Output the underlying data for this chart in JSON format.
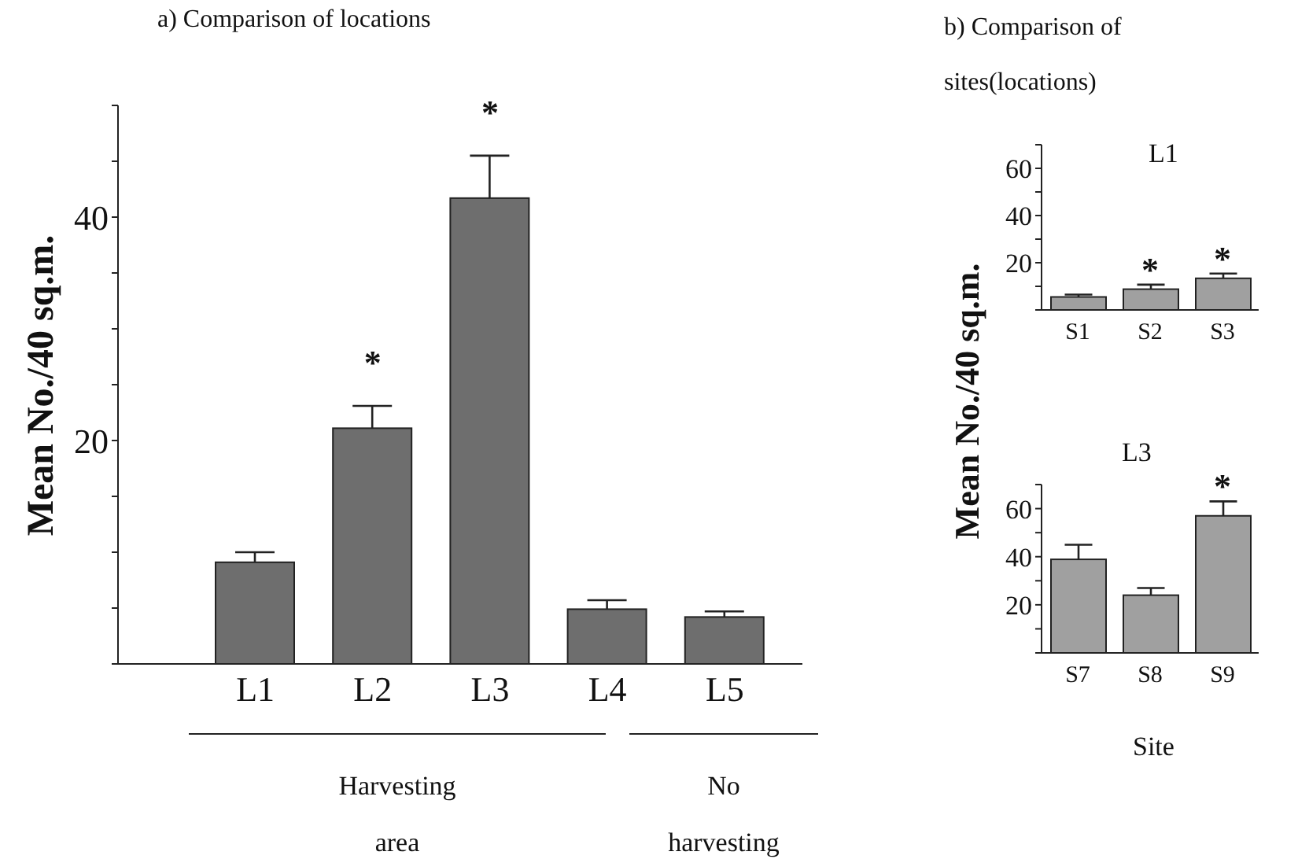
{
  "chart_data": [
    {
      "type": "bar",
      "title": "a) Comparison of locations",
      "ylabel": "Mean No./40 sq.m.",
      "categories": [
        "L1",
        "L2",
        "L3",
        "L4",
        "L5"
      ],
      "values": [
        9.1,
        21.1,
        41.7,
        4.9,
        4.2
      ],
      "errors": [
        [
          9.1,
          10.0
        ],
        [
          21.1,
          23.1
        ],
        [
          41.7,
          45.5
        ],
        [
          4.9,
          5.7
        ],
        [
          4.2,
          4.7
        ]
      ],
      "color": "#6e6e6e",
      "ylim": [
        0,
        50
      ],
      "yticks": [
        {
          "value": 0,
          "label": null
        },
        {
          "value": 5,
          "label": null
        },
        {
          "value": 10,
          "label": null
        },
        {
          "value": 15,
          "label": null
        },
        20,
        {
          "value": 25,
          "label": null
        },
        {
          "value": 30,
          "label": null
        },
        {
          "value": 35,
          "label": null
        },
        40,
        {
          "value": 45,
          "label": null
        },
        {
          "value": 50,
          "label": null
        }
      ],
      "annotations": [
        {
          "text": "*",
          "x": "L2",
          "y": 23.1
        },
        {
          "text": "*",
          "x": "L3",
          "y": 45.5
        },
        "Harvesting area",
        "No harvesting"
      ]
    },
    {
      "type": "bar",
      "title": "b) Comparison of sites(locations)",
      "subtitle": "L1",
      "ylabel": "Mean No./40 sq.m.",
      "categories": [
        "S1",
        "S2",
        "S3"
      ],
      "values": [
        5.5,
        8.8,
        13.4
      ],
      "errors": [
        [
          5.5,
          6.5
        ],
        [
          8.8,
          10.7
        ],
        [
          13.4,
          15.4
        ]
      ],
      "color": "#a0a0a0",
      "ylim": [
        0,
        70
      ],
      "yticks": [
        {
          "value": 0,
          "label": null
        },
        {
          "value": 10,
          "label": null
        },
        20,
        {
          "value": 30,
          "label": null
        },
        40,
        {
          "value": 50,
          "label": null
        },
        60,
        {
          "value": 70,
          "label": null
        }
      ],
      "annotations": [
        {
          "text": "*",
          "x": "S2",
          "y": 10.7
        },
        {
          "text": "*",
          "x": "S3",
          "y": 15.4
        }
      ]
    },
    {
      "type": "bar",
      "subtitle": "L3",
      "xlabel": "Site",
      "categories": [
        "S7",
        "S8",
        "S9"
      ],
      "values": [
        38.9,
        24,
        57
      ],
      "errors": [
        [
          38.9,
          45
        ],
        [
          24,
          27
        ],
        [
          57,
          63
        ]
      ],
      "color": "#a0a0a0",
      "ylim": [
        0,
        70
      ],
      "yticks": [
        {
          "value": 0,
          "label": null
        },
        {
          "value": 10,
          "label": null
        },
        20,
        {
          "value": 30,
          "label": null
        },
        40,
        {
          "value": 50,
          "label": null
        },
        60,
        {
          "value": 70,
          "label": null
        }
      ],
      "annotations": [
        {
          "text": "*",
          "x": "S9",
          "y": 63
        }
      ]
    }
  ]
}
